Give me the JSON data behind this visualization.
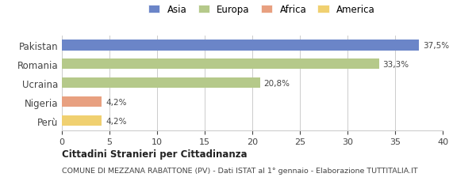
{
  "categories": [
    "Pakistan",
    "Romania",
    "Ucraina",
    "Nigeria",
    "Perù"
  ],
  "values": [
    37.5,
    33.3,
    20.8,
    4.2,
    4.2
  ],
  "labels": [
    "37,5%",
    "33,3%",
    "20,8%",
    "4,2%",
    "4,2%"
  ],
  "bar_colors": [
    "#6b85c8",
    "#b5c98a",
    "#b5c98a",
    "#e8a080",
    "#f0d070"
  ],
  "legend": [
    {
      "label": "Asia",
      "color": "#6b85c8"
    },
    {
      "label": "Europa",
      "color": "#b5c98a"
    },
    {
      "label": "Africa",
      "color": "#e8a080"
    },
    {
      "label": "America",
      "color": "#f0d070"
    }
  ],
  "xlim": [
    0,
    40
  ],
  "xticks": [
    0,
    5,
    10,
    15,
    20,
    25,
    30,
    35,
    40
  ],
  "title_bold": "Cittadini Stranieri per Cittadinanza",
  "subtitle": "COMUNE DI MEZZANA RABATTONE (PV) - Dati ISTAT al 1° gennaio - Elaborazione TUTTITALIA.IT",
  "background_color": "#ffffff",
  "bar_height": 0.55,
  "grid_color": "#cccccc",
  "label_fontsize": 7.5,
  "tick_fontsize": 8,
  "ylabel_fontsize": 8.5
}
